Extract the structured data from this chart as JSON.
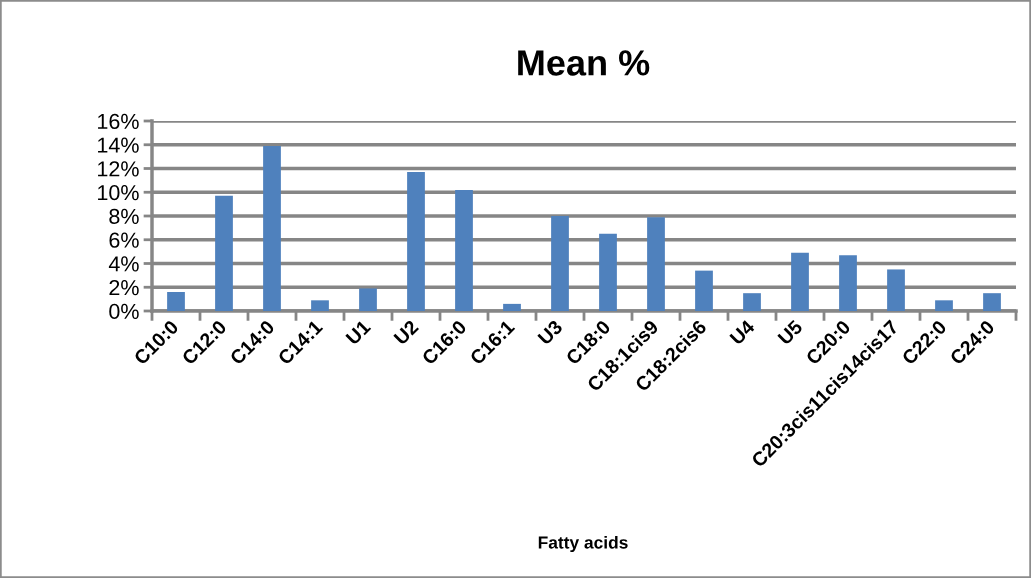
{
  "chart_data": {
    "type": "bar",
    "title": "Mean %",
    "xlabel": "Fatty acids",
    "categories": [
      "C10:0",
      "C12:0",
      "C14:0",
      "C14:1",
      "U1",
      "U2",
      "C16:0",
      "C16:1",
      "U3",
      "C18:0",
      "C18:1cis9",
      "C18:2cis6",
      "U4",
      "U5",
      "C20:0",
      "C20:3cis11cis14cis17",
      "C22:0",
      "C24:0"
    ],
    "values": [
      1.6,
      9.7,
      13.9,
      0.9,
      1.9,
      11.7,
      10.2,
      0.6,
      8.0,
      6.5,
      7.9,
      3.4,
      1.5,
      4.9,
      4.7,
      3.5,
      0.9,
      1.5
    ],
    "color": "#4f81bd",
    "ylim": [
      0,
      16
    ],
    "yticks": [
      {
        "value": 0,
        "label": "0%"
      },
      {
        "value": 2,
        "label": "2%"
      },
      {
        "value": 4,
        "label": "4%"
      },
      {
        "value": 6,
        "label": "6%"
      },
      {
        "value": 8,
        "label": "8%"
      },
      {
        "value": 10,
        "label": "10%"
      },
      {
        "value": 12,
        "label": "12%"
      },
      {
        "value": 14,
        "label": "14%"
      },
      {
        "value": 16,
        "label": "16%"
      }
    ],
    "grid": "y"
  }
}
